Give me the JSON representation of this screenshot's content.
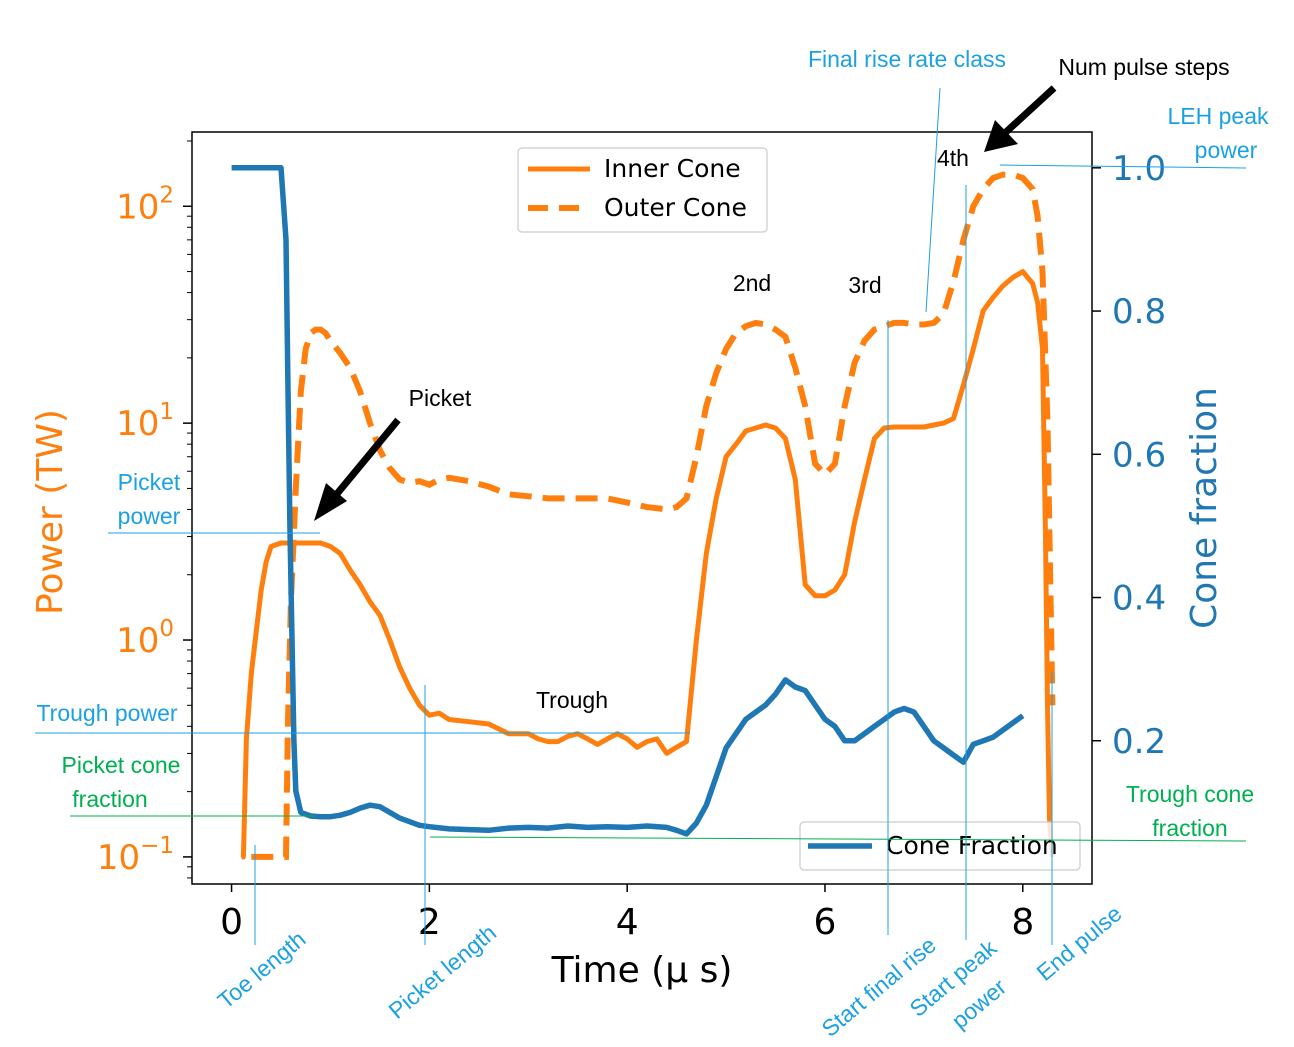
{
  "chart_data": {
    "type": "line",
    "title": "",
    "xlabel": "Time (μ s)",
    "ylabel_left": "Power (TW)",
    "ylabel_right": "Cone fraction",
    "xlim": [
      -0.4,
      8.7
    ],
    "ylim_left": [
      0.075,
      220
    ],
    "yscale_left": "log",
    "ylim_right": [
      0.0,
      1.05
    ],
    "x_ticks": [
      0,
      2,
      4,
      6,
      8
    ],
    "x_tick_labels": [
      "0",
      "2",
      "4",
      "6",
      "8"
    ],
    "y_left_ticks": [
      {
        "value": 100,
        "base": "10",
        "exp": "2"
      },
      {
        "value": 10,
        "base": "10",
        "exp": "1"
      },
      {
        "value": 1,
        "base": "10",
        "exp": "0"
      },
      {
        "value": 0.1,
        "base": "10",
        "exp": "−1"
      }
    ],
    "y_right_ticks": [
      1.0,
      0.8,
      0.6,
      0.4,
      0.2
    ],
    "y_right_tick_labels": [
      "1.0",
      "0.8",
      "0.6",
      "0.4",
      "0.2"
    ],
    "colors": {
      "orange": "#ff7f0e",
      "blue": "#1f77b4",
      "annot_blue": "#1ba1e2",
      "annot_green": "#00b050"
    },
    "legend_power": {
      "placement": "upper-center",
      "entries": [
        "Inner Cone",
        "Outer Cone"
      ]
    },
    "legend_fraction": {
      "placement": "lower-right",
      "entries": [
        "Cone Fraction"
      ]
    },
    "series": [
      {
        "name": "Inner Cone",
        "axis": "left",
        "style": "solid",
        "x": [
          0.1,
          0.12,
          0.15,
          0.2,
          0.25,
          0.3,
          0.35,
          0.4,
          0.5,
          0.6,
          0.7,
          0.8,
          0.9,
          1.0,
          1.1,
          1.2,
          1.3,
          1.4,
          1.5,
          1.6,
          1.7,
          1.8,
          1.9,
          2.0,
          2.1,
          2.2,
          2.4,
          2.6,
          2.8,
          3.0,
          3.1,
          3.2,
          3.3,
          3.4,
          3.5,
          3.6,
          3.7,
          3.8,
          3.9,
          4.0,
          4.1,
          4.2,
          4.3,
          4.4,
          4.5,
          4.6,
          4.7,
          4.8,
          4.9,
          5.0,
          5.1,
          5.2,
          5.3,
          5.4,
          5.5,
          5.6,
          5.7,
          5.8,
          5.9,
          6.0,
          6.1,
          6.2,
          6.3,
          6.4,
          6.5,
          6.6,
          6.7,
          6.8,
          6.9,
          7.0,
          7.1,
          7.2,
          7.3,
          7.4,
          7.5,
          7.6,
          7.7,
          7.8,
          7.9,
          8.0,
          8.1,
          8.15,
          8.2,
          8.23,
          8.25,
          8.27,
          8.3
        ],
        "y": [
          0.1,
          0.1,
          0.35,
          0.7,
          1.1,
          1.7,
          2.3,
          2.7,
          2.8,
          2.8,
          2.8,
          2.8,
          2.8,
          2.7,
          2.5,
          2.1,
          1.8,
          1.5,
          1.3,
          1.0,
          0.75,
          0.6,
          0.5,
          0.45,
          0.46,
          0.43,
          0.42,
          0.41,
          0.37,
          0.37,
          0.35,
          0.34,
          0.34,
          0.36,
          0.37,
          0.35,
          0.33,
          0.35,
          0.37,
          0.35,
          0.32,
          0.34,
          0.35,
          0.3,
          0.32,
          0.34,
          1.0,
          2.5,
          4.5,
          7.0,
          8.0,
          9.2,
          9.5,
          9.8,
          9.5,
          8.5,
          5.5,
          1.8,
          1.6,
          1.6,
          1.7,
          2.0,
          3.5,
          5.5,
          8.5,
          9.5,
          9.6,
          9.6,
          9.6,
          9.6,
          9.8,
          10.0,
          10.5,
          15.0,
          22.0,
          33.0,
          38.0,
          43.0,
          47.0,
          50.0,
          44.0,
          36.0,
          22.0,
          3.0,
          0.5,
          0.15,
          0.1
        ]
      },
      {
        "name": "Outer Cone",
        "axis": "left",
        "style": "dashed",
        "x": [
          0.2,
          0.4,
          0.5,
          0.55,
          0.57,
          0.6,
          0.65,
          0.7,
          0.75,
          0.8,
          0.85,
          0.9,
          0.95,
          1.0,
          1.1,
          1.2,
          1.3,
          1.4,
          1.5,
          1.6,
          1.7,
          1.8,
          1.9,
          2.0,
          2.1,
          2.2,
          2.4,
          2.6,
          2.8,
          3.0,
          3.2,
          3.4,
          3.6,
          3.8,
          4.0,
          4.2,
          4.4,
          4.5,
          4.6,
          4.7,
          4.8,
          4.9,
          5.0,
          5.1,
          5.2,
          5.3,
          5.4,
          5.5,
          5.6,
          5.7,
          5.8,
          5.9,
          6.0,
          6.1,
          6.2,
          6.3,
          6.4,
          6.5,
          6.6,
          6.7,
          6.8,
          6.9,
          7.0,
          7.1,
          7.2,
          7.3,
          7.4,
          7.5,
          7.6,
          7.7,
          7.8,
          7.9,
          8.0,
          8.1,
          8.15,
          8.2,
          8.25,
          8.3
        ],
        "y": [
          0.1,
          0.1,
          0.1,
          0.1,
          0.4,
          1.5,
          5.0,
          14.0,
          22.0,
          26.0,
          27.0,
          27.0,
          26.0,
          24.0,
          21.0,
          18.0,
          14.0,
          10.0,
          7.5,
          6.2,
          5.5,
          5.3,
          5.4,
          5.2,
          5.5,
          5.6,
          5.4,
          5.1,
          4.7,
          4.6,
          4.5,
          4.5,
          4.5,
          4.5,
          4.3,
          4.1,
          4.0,
          4.1,
          4.5,
          7.0,
          12.0,
          17.0,
          22.0,
          26.0,
          28.0,
          29.0,
          28.5,
          27.0,
          25.0,
          18.0,
          12.0,
          6.5,
          5.8,
          6.5,
          12.0,
          19.0,
          24.0,
          27.0,
          28.0,
          29.0,
          29.0,
          28.5,
          28.5,
          29.0,
          32.0,
          45.0,
          70.0,
          100.0,
          120.0,
          135.0,
          140.0,
          140.0,
          135.0,
          120.0,
          90.0,
          50.0,
          10.0,
          0.5
        ]
      },
      {
        "name": "Cone Fraction",
        "axis": "right",
        "style": "solid",
        "x": [
          0.0,
          0.3,
          0.5,
          0.55,
          0.57,
          0.59,
          0.61,
          0.63,
          0.65,
          0.7,
          0.8,
          0.9,
          1.0,
          1.1,
          1.2,
          1.3,
          1.4,
          1.5,
          1.6,
          1.7,
          1.8,
          1.9,
          2.0,
          2.2,
          2.4,
          2.6,
          2.8,
          3.0,
          3.2,
          3.4,
          3.6,
          3.8,
          4.0,
          4.2,
          4.4,
          4.5,
          4.6,
          4.7,
          4.8,
          4.9,
          5.0,
          5.1,
          5.2,
          5.3,
          5.4,
          5.5,
          5.6,
          5.7,
          5.8,
          5.9,
          6.0,
          6.1,
          6.2,
          6.3,
          6.4,
          6.5,
          6.6,
          6.7,
          6.8,
          6.9,
          7.0,
          7.1,
          7.2,
          7.3,
          7.4,
          7.5,
          7.6,
          7.7,
          7.8,
          7.9,
          8.0
        ],
        "y": [
          1.0,
          1.0,
          1.0,
          0.9,
          0.7,
          0.5,
          0.35,
          0.2,
          0.13,
          0.1,
          0.095,
          0.094,
          0.094,
          0.096,
          0.1,
          0.106,
          0.11,
          0.108,
          0.1,
          0.092,
          0.087,
          0.082,
          0.08,
          0.077,
          0.076,
          0.075,
          0.078,
          0.079,
          0.078,
          0.081,
          0.079,
          0.08,
          0.079,
          0.081,
          0.079,
          0.075,
          0.07,
          0.085,
          0.11,
          0.15,
          0.19,
          0.21,
          0.23,
          0.24,
          0.25,
          0.265,
          0.285,
          0.275,
          0.27,
          0.25,
          0.23,
          0.22,
          0.2,
          0.2,
          0.21,
          0.22,
          0.23,
          0.24,
          0.245,
          0.24,
          0.22,
          0.2,
          0.19,
          0.18,
          0.17,
          0.195,
          0.2,
          0.205,
          0.215,
          0.225,
          0.235
        ]
      }
    ],
    "annotations": {
      "final_rise_rate_class": "Final rise rate class",
      "num_pulse_steps": "Num pulse steps",
      "leh_peak_power": [
        "LEH peak",
        "power"
      ],
      "picket_power": [
        "Picket",
        "power"
      ],
      "trough_power": "Trough power",
      "picket_cone_fraction": [
        "Picket cone",
        "fraction"
      ],
      "trough_cone_fraction": [
        "Trough cone",
        "fraction"
      ],
      "picket": "Picket",
      "trough": "Trough",
      "step_2nd": "2nd",
      "step_3rd": "3rd",
      "step_4th": "4th",
      "toe_length": "Toe length",
      "picket_length": "Picket length",
      "start_final_rise": "Start final rise",
      "start_peak_power": [
        "Start peak",
        "power"
      ],
      "end_pulse": "End pulse"
    }
  }
}
